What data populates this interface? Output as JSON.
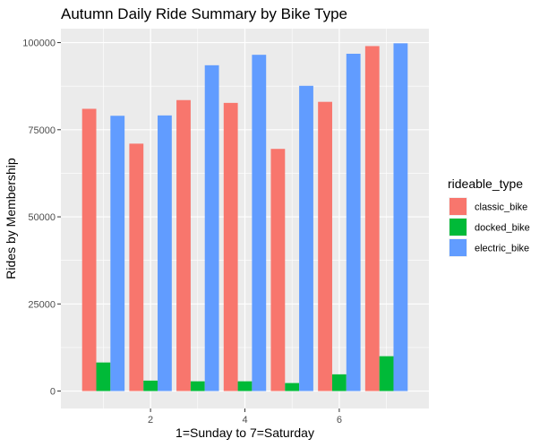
{
  "chart_data": {
    "type": "bar",
    "title": "Autumn Daily Ride Summary by Bike Type",
    "xlabel": "1=Sunday to 7=Saturday",
    "ylabel": "Rides by Membership",
    "categories": [
      1,
      2,
      3,
      4,
      5,
      6,
      7
    ],
    "x_ticks": [
      2,
      4,
      6
    ],
    "x_tick_labels": [
      "2",
      "4",
      "6"
    ],
    "y_ticks": [
      0,
      25000,
      50000,
      75000,
      100000
    ],
    "y_tick_labels": [
      "0",
      "25000",
      "50000",
      "75000",
      "100000"
    ],
    "xlim": [
      0.1,
      7.9
    ],
    "ylim": [
      -5000,
      104000
    ],
    "grid": true,
    "legend": {
      "title": "rideable_type",
      "position": "right"
    },
    "series": [
      {
        "name": "classic_bike",
        "color": "#F8766D",
        "values": [
          81000,
          71000,
          83500,
          82700,
          69500,
          83000,
          99000
        ]
      },
      {
        "name": "docked_bike",
        "color": "#00BA38",
        "values": [
          8200,
          3000,
          2800,
          2800,
          2300,
          4800,
          10000
        ]
      },
      {
        "name": "electric_bike",
        "color": "#619CFF",
        "values": [
          79000,
          79100,
          93500,
          96500,
          87600,
          96800,
          99800
        ]
      }
    ]
  }
}
